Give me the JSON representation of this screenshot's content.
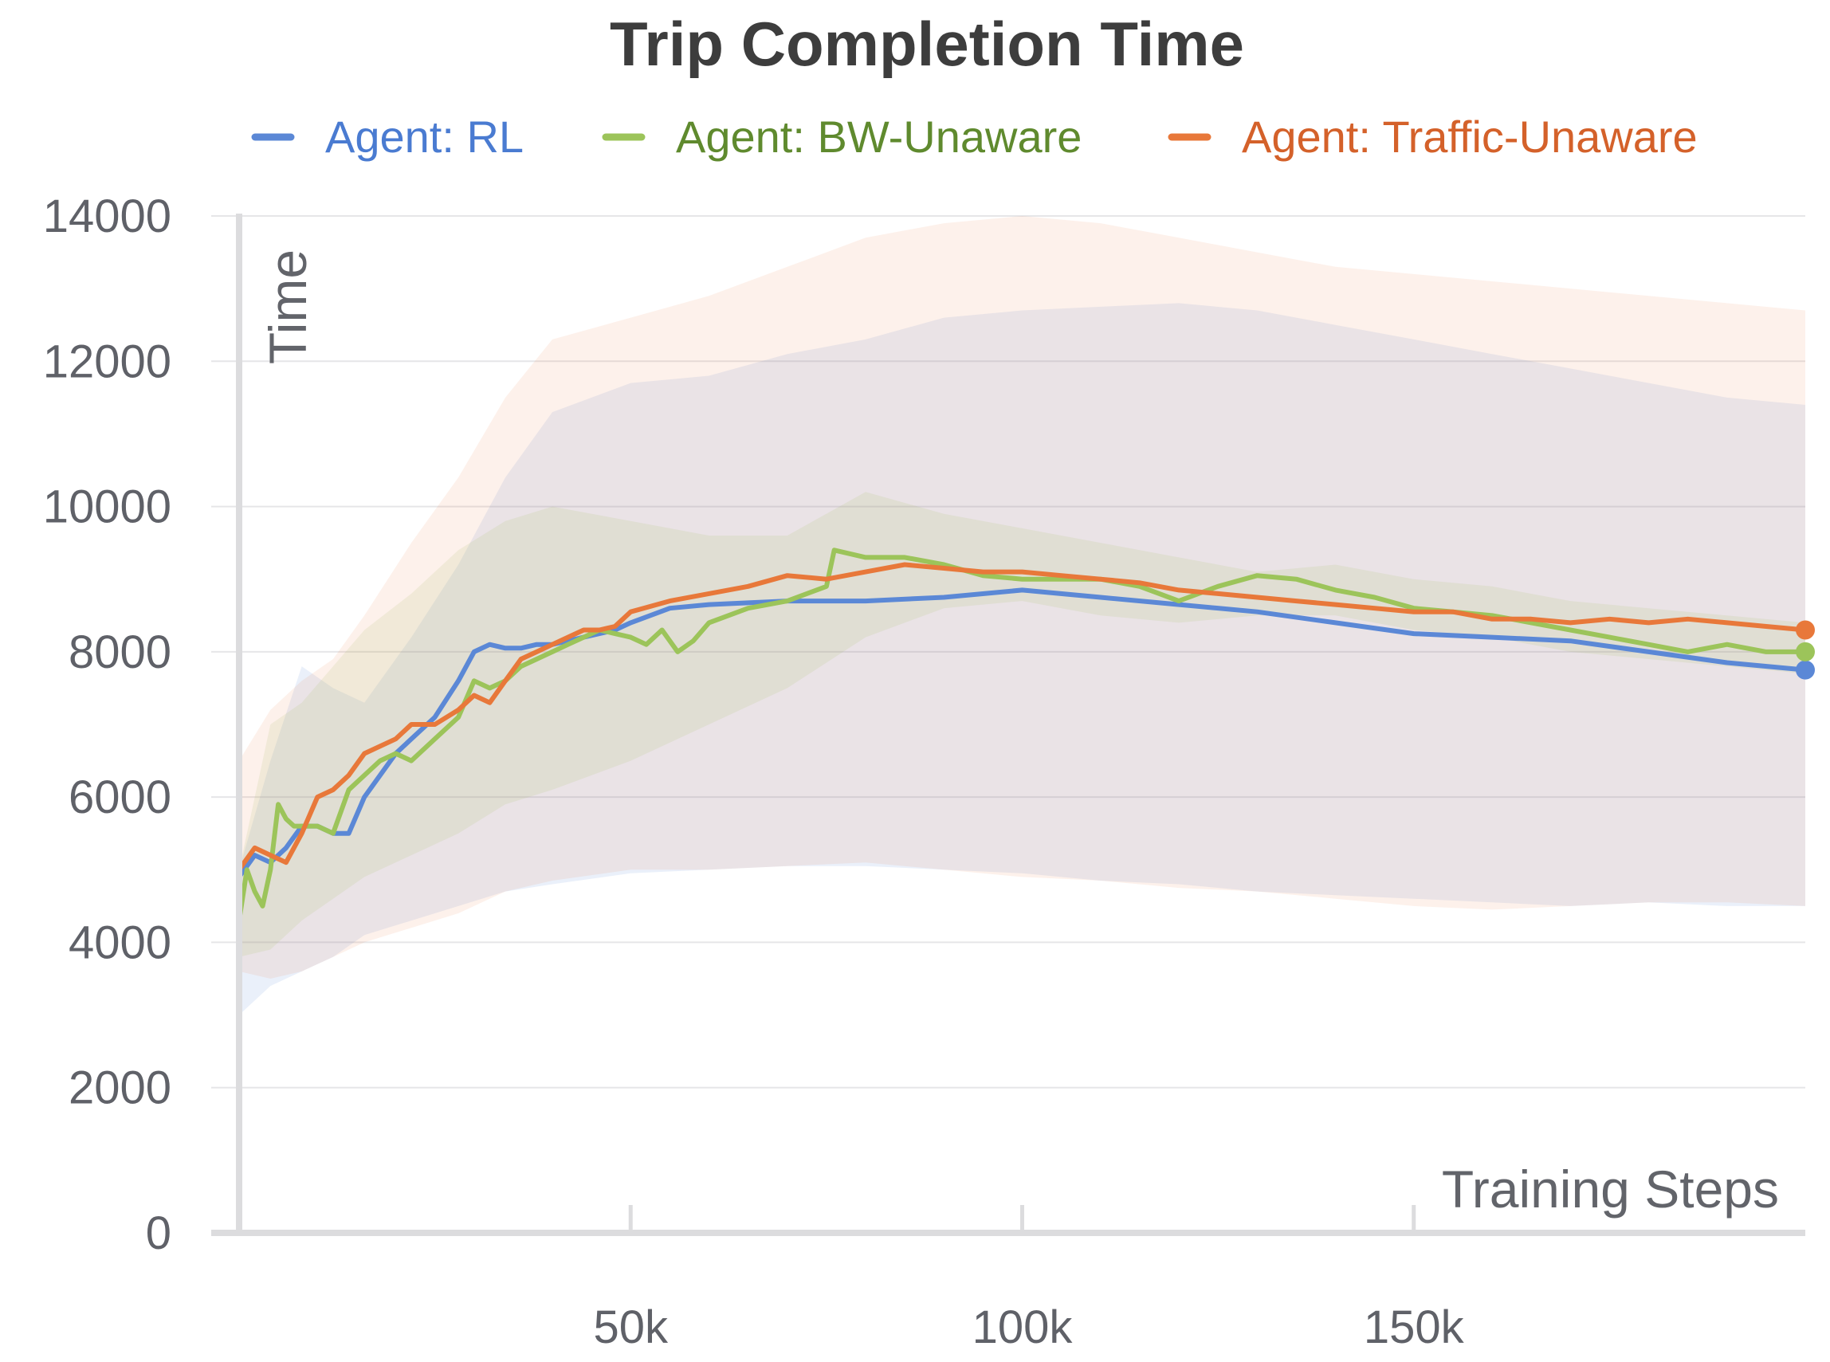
{
  "chart_data": {
    "type": "line",
    "title": "Trip Completion Time",
    "xlabel": "Training Steps",
    "ylabel": "Time",
    "xlim": [
      0,
      200000
    ],
    "ylim": [
      0,
      14000
    ],
    "x_ticks": [
      50000,
      100000,
      150000
    ],
    "x_tick_labels": [
      "50k",
      "100k",
      "150k"
    ],
    "y_ticks": [
      0,
      2000,
      4000,
      6000,
      8000,
      10000,
      12000,
      14000
    ],
    "y_tick_labels": [
      "0",
      "2000",
      "4000",
      "6000",
      "8000",
      "10000",
      "12000",
      "14000"
    ],
    "grid": true,
    "legend_position": "top",
    "series": [
      {
        "name": "Agent: RL",
        "color": "#5b88d6",
        "text_color": "#4a7bd1",
        "x": [
          0,
          2000,
          4000,
          6000,
          8000,
          10000,
          12000,
          14000,
          16000,
          18000,
          20000,
          22000,
          25000,
          28000,
          30000,
          32000,
          34000,
          36000,
          38000,
          40000,
          42000,
          44000,
          46000,
          48000,
          50000,
          55000,
          60000,
          70000,
          80000,
          90000,
          100000,
          110000,
          120000,
          130000,
          140000,
          150000,
          160000,
          170000,
          180000,
          190000,
          200000
        ],
        "y": [
          4900,
          5200,
          5100,
          5300,
          5600,
          5600,
          5500,
          5500,
          6000,
          6300,
          6600,
          6800,
          7100,
          7600,
          8000,
          8100,
          8050,
          8050,
          8100,
          8100,
          8150,
          8200,
          8250,
          8300,
          8400,
          8600,
          8650,
          8700,
          8700,
          8750,
          8850,
          8750,
          8650,
          8550,
          8400,
          8250,
          8200,
          8150,
          8000,
          7850,
          7750
        ],
        "band_upper": [
          5000,
          6500,
          7800,
          7500,
          7300,
          8200,
          9200,
          10400,
          11300,
          11700,
          11800,
          12100,
          12300,
          12600,
          12700,
          12750,
          12800,
          12700,
          12500,
          12300,
          12100,
          11900,
          11700,
          11500,
          11400
        ],
        "band_x": [
          0,
          4000,
          8000,
          12000,
          16000,
          22000,
          28000,
          34000,
          40000,
          50000,
          60000,
          70000,
          80000,
          90000,
          100000,
          110000,
          120000,
          130000,
          140000,
          150000,
          160000,
          170000,
          180000,
          190000,
          200000
        ],
        "band_lower": [
          3000,
          3400,
          3600,
          3800,
          4100,
          4300,
          4500,
          4700,
          4800,
          4950,
          5000,
          5050,
          5050,
          5000,
          4950,
          4850,
          4800,
          4700,
          4650,
          4600,
          4550,
          4500,
          4550,
          4500,
          4500
        ]
      },
      {
        "name": "Agent: BW-Unaware",
        "color": "#9cc45a",
        "text_color": "#5f8a2e",
        "x": [
          0,
          1000,
          2000,
          3000,
          4000,
          5000,
          6000,
          7000,
          8000,
          10000,
          12000,
          14000,
          16000,
          18000,
          20000,
          22000,
          25000,
          28000,
          30000,
          32000,
          34000,
          36000,
          38000,
          40000,
          42000,
          44000,
          46000,
          48000,
          50000,
          52000,
          54000,
          56000,
          58000,
          60000,
          65000,
          70000,
          75000,
          76000,
          80000,
          85000,
          90000,
          95000,
          100000,
          105000,
          110000,
          115000,
          120000,
          125000,
          130000,
          135000,
          140000,
          145000,
          150000,
          155000,
          160000,
          165000,
          170000,
          175000,
          180000,
          185000,
          190000,
          195000,
          200000
        ],
        "y": [
          4300,
          5000,
          4700,
          4500,
          5000,
          5900,
          5700,
          5600,
          5600,
          5600,
          5500,
          6100,
          6300,
          6500,
          6600,
          6500,
          6800,
          7100,
          7600,
          7500,
          7600,
          7800,
          7900,
          8000,
          8100,
          8200,
          8300,
          8250,
          8200,
          8100,
          8300,
          8000,
          8150,
          8400,
          8600,
          8700,
          8900,
          9400,
          9300,
          9300,
          9200,
          9050,
          9000,
          9000,
          9000,
          8900,
          8700,
          8900,
          9050,
          9000,
          8850,
          8750,
          8600,
          8550,
          8500,
          8400,
          8300,
          8200,
          8100,
          8000,
          8100,
          8000,
          8000
        ],
        "band_upper": [
          5000,
          7000,
          7300,
          7800,
          8300,
          8800,
          9400,
          9800,
          10000,
          9800,
          9600,
          9600,
          10200,
          9900,
          9700,
          9500,
          9300,
          9100,
          9200,
          9000,
          8900,
          8700,
          8600,
          8500,
          8400
        ],
        "band_x": [
          0,
          4000,
          8000,
          12000,
          16000,
          22000,
          28000,
          34000,
          40000,
          50000,
          60000,
          70000,
          80000,
          90000,
          100000,
          110000,
          120000,
          130000,
          140000,
          150000,
          160000,
          170000,
          180000,
          190000,
          200000
        ],
        "band_lower": [
          3800,
          3900,
          4300,
          4600,
          4900,
          5200,
          5500,
          5900,
          6100,
          6500,
          7000,
          7500,
          8200,
          8600,
          8700,
          8500,
          8400,
          8500,
          8500,
          8300,
          8200,
          8000,
          7900,
          7800,
          7700
        ]
      },
      {
        "name": "Agent: Traffic-Unaware",
        "color": "#e8783a",
        "text_color": "#d4612a",
        "x": [
          0,
          2000,
          4000,
          6000,
          8000,
          10000,
          12000,
          14000,
          16000,
          18000,
          20000,
          22000,
          25000,
          28000,
          30000,
          32000,
          34000,
          36000,
          38000,
          40000,
          42000,
          44000,
          46000,
          48000,
          50000,
          55000,
          60000,
          65000,
          70000,
          75000,
          80000,
          85000,
          90000,
          95000,
          100000,
          105000,
          110000,
          115000,
          120000,
          125000,
          130000,
          135000,
          140000,
          145000,
          150000,
          155000,
          160000,
          165000,
          170000,
          175000,
          180000,
          185000,
          190000,
          195000,
          200000
        ],
        "y": [
          5000,
          5300,
          5200,
          5100,
          5500,
          6000,
          6100,
          6300,
          6600,
          6700,
          6800,
          7000,
          7000,
          7200,
          7400,
          7300,
          7600,
          7900,
          8000,
          8100,
          8200,
          8300,
          8300,
          8350,
          8550,
          8700,
          8800,
          8900,
          9050,
          9000,
          9100,
          9200,
          9150,
          9100,
          9100,
          9050,
          9000,
          8950,
          8850,
          8800,
          8750,
          8700,
          8650,
          8600,
          8550,
          8550,
          8450,
          8450,
          8400,
          8450,
          8400,
          8450,
          8400,
          8350,
          8300
        ],
        "band_upper": [
          6500,
          7200,
          7600,
          7900,
          8500,
          9500,
          10400,
          11500,
          12300,
          12600,
          12900,
          13300,
          13700,
          13900,
          14000,
          13900,
          13700,
          13500,
          13300,
          13200,
          13100,
          13000,
          12900,
          12800,
          12700
        ],
        "band_x": [
          0,
          4000,
          8000,
          12000,
          16000,
          22000,
          28000,
          34000,
          40000,
          50000,
          60000,
          70000,
          80000,
          90000,
          100000,
          110000,
          120000,
          130000,
          140000,
          150000,
          160000,
          170000,
          180000,
          190000,
          200000
        ],
        "band_lower": [
          3600,
          3500,
          3600,
          3800,
          4000,
          4200,
          4400,
          4700,
          4850,
          5000,
          5000,
          5050,
          5100,
          5000,
          4900,
          4850,
          4750,
          4700,
          4600,
          4500,
          4450,
          4500,
          4550,
          4550,
          4500
        ]
      }
    ]
  }
}
